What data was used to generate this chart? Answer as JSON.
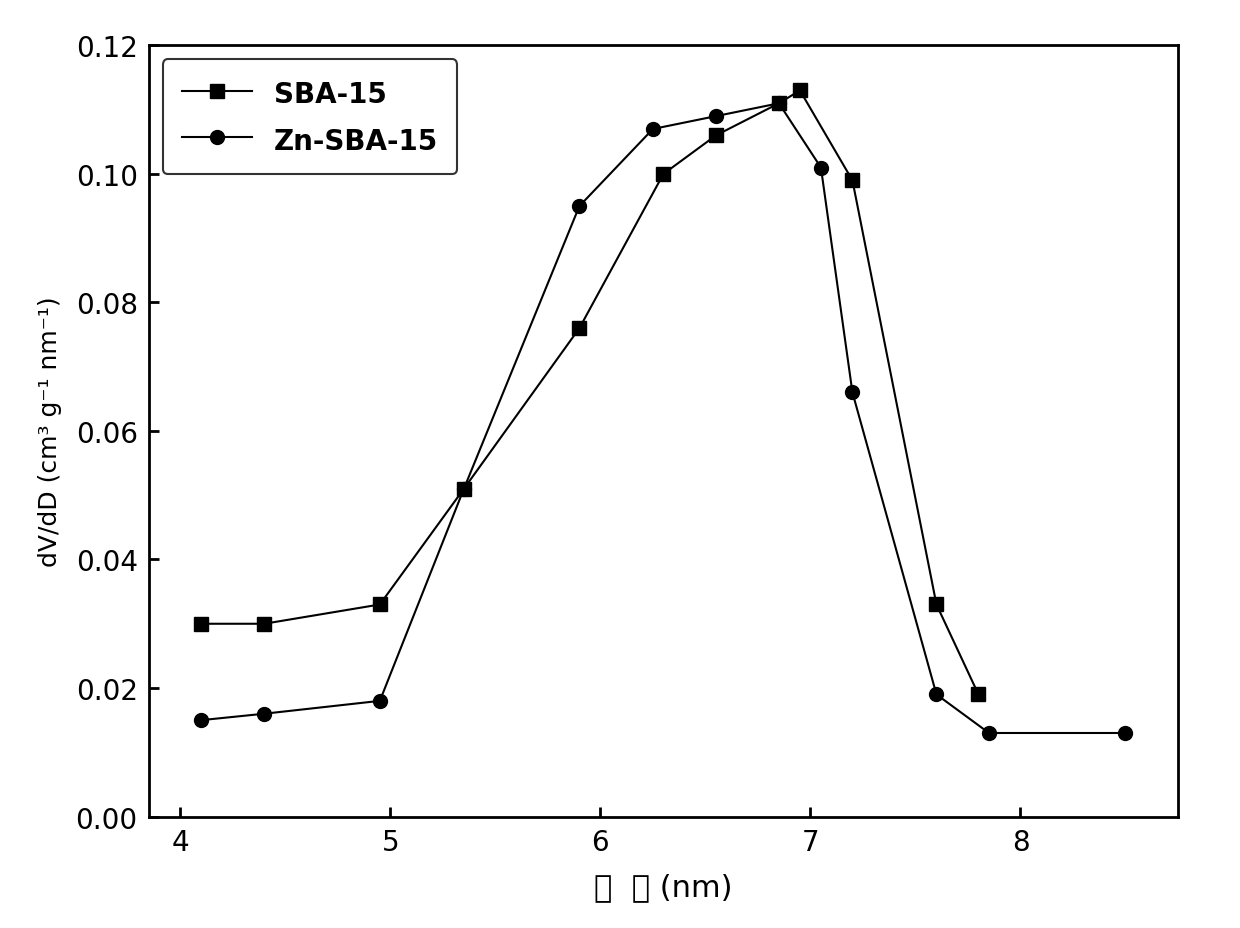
{
  "sba15_x": [
    4.1,
    4.4,
    4.95,
    5.35,
    5.9,
    6.3,
    6.55,
    6.85,
    6.95,
    7.2,
    7.6,
    7.8
  ],
  "sba15_y": [
    0.03,
    0.03,
    0.033,
    0.051,
    0.076,
    0.1,
    0.106,
    0.111,
    0.113,
    0.099,
    0.033,
    0.019
  ],
  "znsba15_x": [
    4.1,
    4.4,
    4.95,
    5.35,
    5.9,
    6.25,
    6.55,
    6.85,
    7.05,
    7.2,
    7.6,
    7.85,
    8.5
  ],
  "znsba15_y": [
    0.015,
    0.016,
    0.018,
    0.051,
    0.095,
    0.107,
    0.109,
    0.111,
    0.101,
    0.066,
    0.019,
    0.013,
    0.013
  ],
  "xlabel": "孔  径 (nm)",
  "ylabel": "dV/dD (cm³ g⁻¹ nm⁻¹)",
  "xlim": [
    3.85,
    8.75
  ],
  "ylim": [
    0.0,
    0.12
  ],
  "xticks": [
    4,
    5,
    6,
    7,
    8
  ],
  "yticks": [
    0.0,
    0.02,
    0.04,
    0.06,
    0.08,
    0.1,
    0.12
  ],
  "legend_sba15": "SBA-15",
  "legend_znsba15": "Zn-SBA-15",
  "line_color": "#000000",
  "marker_square": "s",
  "marker_circle": "o",
  "marker_size": 10,
  "linewidth": 1.5
}
